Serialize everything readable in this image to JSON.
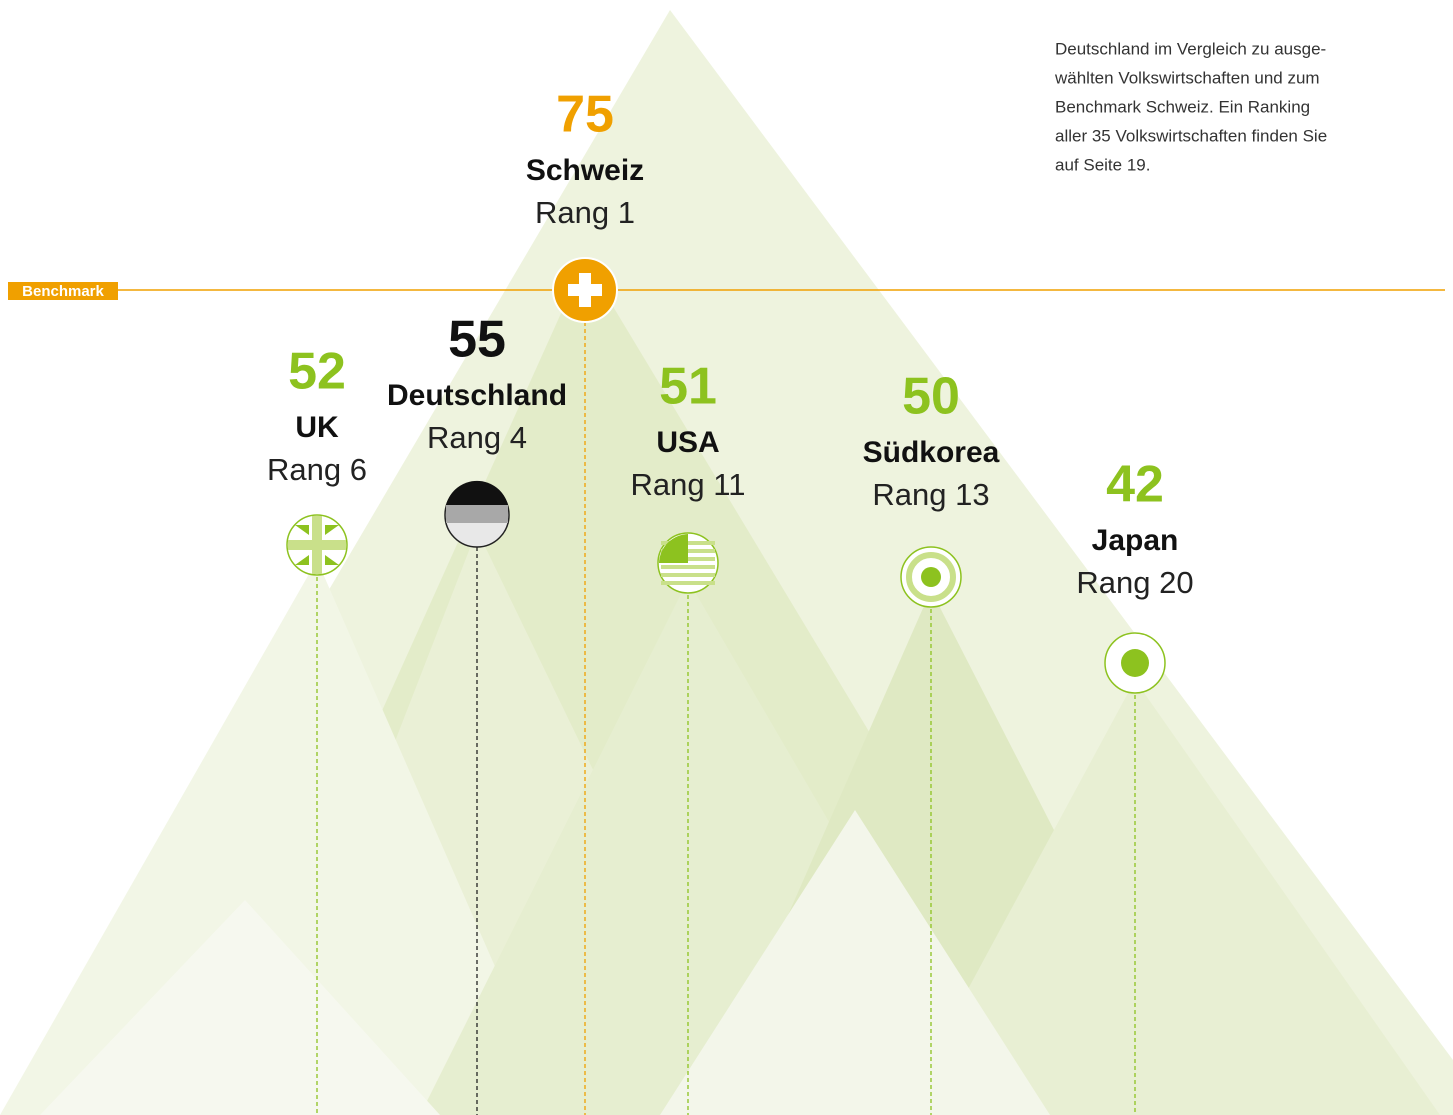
{
  "description": [
    "Deutschland im Vergleich zu ausge-",
    "wählten Volkswirtschaften und zum",
    "Benchmark Schweiz. Ein Ranking",
    "aller 35 Volkswirtschaften finden Sie",
    "auf Seite 19."
  ],
  "benchmark_label": "Benchmark",
  "countries": [
    {
      "score": 52,
      "name": "UK",
      "rank": "Rang 6",
      "color": "#8dc21f"
    },
    {
      "score": 55,
      "name": "Deutschland",
      "rank": "Rang 4",
      "color": "#111111"
    },
    {
      "score": 75,
      "name": "Schweiz",
      "rank": "Rang 1",
      "color": "#f0a000"
    },
    {
      "score": 51,
      "name": "USA",
      "rank": "Rang 11",
      "color": "#8dc21f"
    },
    {
      "score": 50,
      "name": "Südkorea",
      "rank": "Rang 13",
      "color": "#8dc21f"
    },
    {
      "score": 42,
      "name": "Japan",
      "rank": "Rang 20",
      "color": "#8dc21f"
    }
  ]
}
